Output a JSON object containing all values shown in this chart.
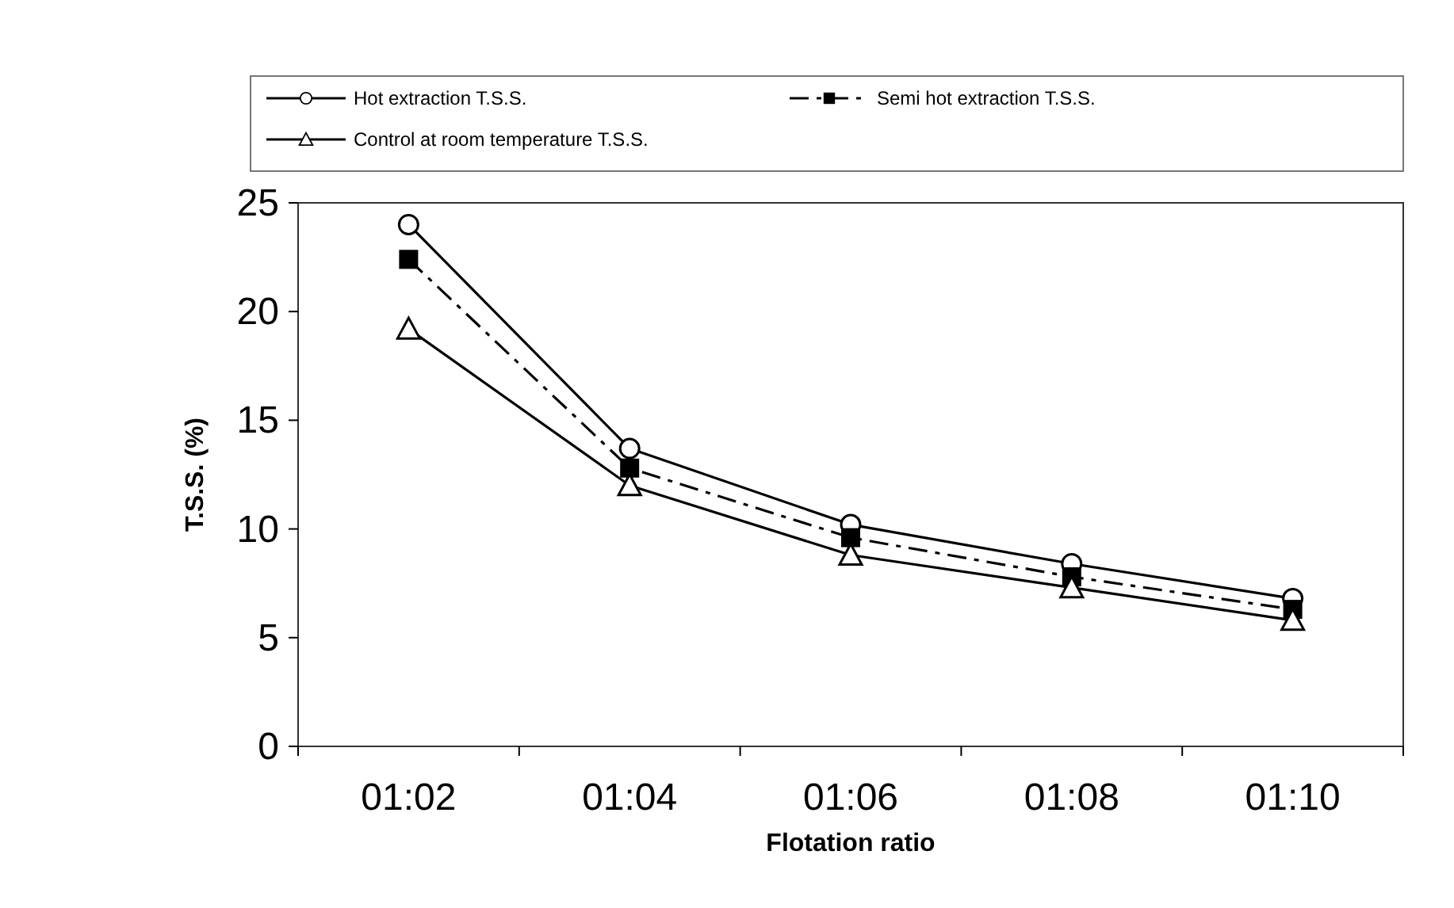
{
  "chart_data": {
    "type": "line",
    "xlabel": "Flotation ratio",
    "ylabel": "T.S.S. (%)",
    "categories": [
      "01:02",
      "01:04",
      "01:06",
      "01:08",
      "01:10"
    ],
    "ylim": [
      0,
      25
    ],
    "yticks": [
      0,
      5,
      10,
      15,
      20,
      25
    ],
    "legend": "top",
    "grid": false,
    "series": [
      {
        "name": "Hot extraction  T.S.S.",
        "color": "#000000",
        "values": [
          24,
          13.7,
          10.2,
          8.4,
          6.8
        ],
        "marker": "circle",
        "line_style": "solid"
      },
      {
        "name": "Semi hot extraction T.S.S.",
        "color": "#000000",
        "values": [
          22.4,
          12.8,
          9.6,
          7.8,
          6.3
        ],
        "marker": "square",
        "line_style": "dashed"
      },
      {
        "name": "Control at room temperature T.S.S.",
        "color": "#000000",
        "values": [
          19.2,
          12,
          8.8,
          7.3,
          5.8
        ],
        "marker": "triangle",
        "line_style": "solid"
      }
    ]
  }
}
